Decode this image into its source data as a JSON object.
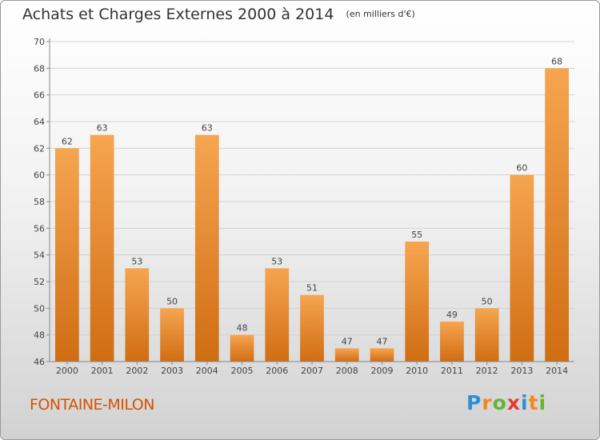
{
  "header": {
    "title": "Achats et Charges Externes 2000 à 2014",
    "subtitle": "(en milliers d'€)"
  },
  "footer": {
    "town": "FONTAINE-MILON",
    "logo_letters": [
      "P",
      "r",
      "o",
      "x",
      "i",
      "t",
      "i"
    ]
  },
  "colors": {
    "bar_light": "#f6a550",
    "bar_dark": "#d06d12",
    "town_text": "#d35400",
    "logo": [
      "#2f8fd6",
      "#f08a1c",
      "#62b536",
      "#e53935",
      "#2f8fd6",
      "#f08a1c",
      "#62b536"
    ]
  },
  "chart_data": {
    "type": "bar",
    "title": "Achats et Charges Externes 2000 à 2014",
    "subtitle": "(en milliers d'€)",
    "categories": [
      "2000",
      "2001",
      "2002",
      "2003",
      "2004",
      "2005",
      "2006",
      "2007",
      "2008",
      "2009",
      "2010",
      "2011",
      "2012",
      "2013",
      "2014"
    ],
    "values": [
      62,
      63,
      53,
      50,
      63,
      48,
      53,
      51,
      47,
      47,
      55,
      49,
      50,
      60,
      68
    ],
    "ylim": [
      46,
      70
    ],
    "yticks": [
      46,
      48,
      50,
      52,
      54,
      56,
      58,
      60,
      62,
      64,
      66,
      68,
      70
    ],
    "xlabel": "",
    "ylabel": "",
    "grid": true,
    "data_labels": true
  }
}
